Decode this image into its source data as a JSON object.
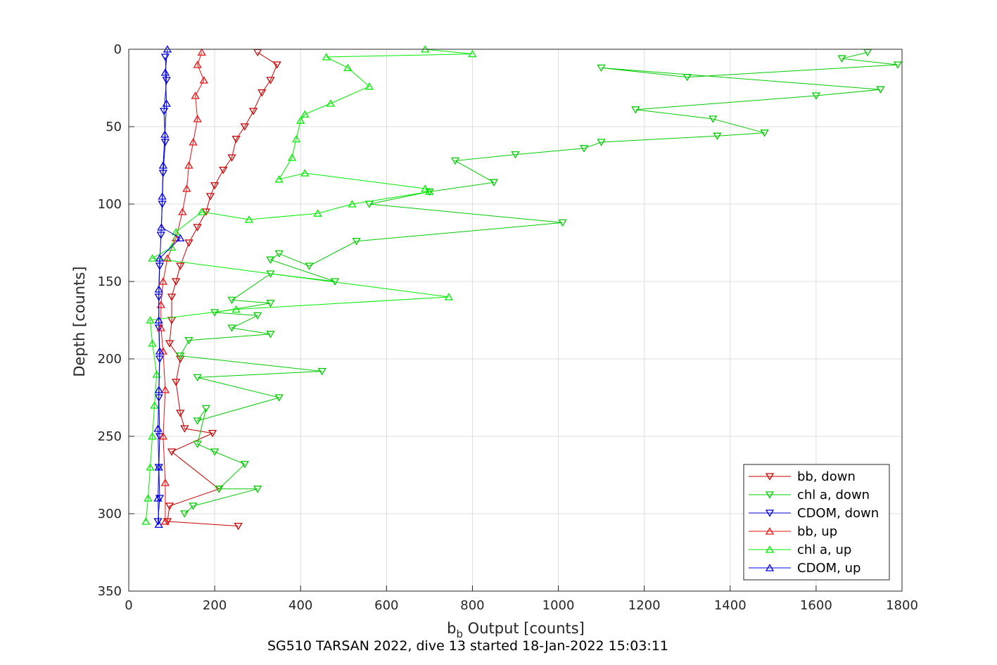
{
  "chart_data": {
    "type": "scatter",
    "xlabel_main": "b",
    "xlabel_sub": "b",
    "xlabel_rest": " Output [counts]",
    "ylabel": "Depth [counts]",
    "caption": "SG510 TARSAN 2022, dive 13 started 18-Jan-2022 15:03:11",
    "xlim": [
      0,
      1800
    ],
    "ylim": [
      0,
      350
    ],
    "y_reversed": true,
    "grid": true,
    "legend_position": "bottom-right",
    "x_ticks": [
      "0",
      "200",
      "400",
      "600",
      "800",
      "1000",
      "1200",
      "1400",
      "1600",
      "1800"
    ],
    "y_ticks": [
      "0",
      "50",
      "100",
      "150",
      "200",
      "250",
      "300",
      "350"
    ],
    "series": [
      {
        "name": "bb, down",
        "color": "#cc0000",
        "marker": "triangle-down",
        "points": [
          [
            300,
            2
          ],
          [
            345,
            10
          ],
          [
            330,
            20
          ],
          [
            310,
            28
          ],
          [
            290,
            40
          ],
          [
            270,
            50
          ],
          [
            250,
            58
          ],
          [
            240,
            70
          ],
          [
            220,
            78
          ],
          [
            200,
            88
          ],
          [
            190,
            95
          ],
          [
            180,
            105
          ],
          [
            160,
            115
          ],
          [
            140,
            125
          ],
          [
            120,
            140
          ],
          [
            110,
            150
          ],
          [
            100,
            160
          ],
          [
            100,
            175
          ],
          [
            95,
            190
          ],
          [
            120,
            200
          ],
          [
            110,
            215
          ],
          [
            120,
            235
          ],
          [
            130,
            245
          ],
          [
            195,
            248
          ],
          [
            100,
            260
          ],
          [
            210,
            284
          ],
          [
            95,
            295
          ],
          [
            90,
            305
          ],
          [
            255,
            308
          ]
        ]
      },
      {
        "name": "chl a, down",
        "color": "#00cc00",
        "marker": "triangle-down",
        "points": [
          [
            1720,
            2
          ],
          [
            1660,
            6
          ],
          [
            1790,
            10
          ],
          [
            1300,
            18
          ],
          [
            1100,
            12
          ],
          [
            1750,
            26
          ],
          [
            1600,
            30
          ],
          [
            1180,
            39
          ],
          [
            1360,
            45
          ],
          [
            1480,
            54
          ],
          [
            1370,
            56
          ],
          [
            1100,
            60
          ],
          [
            1060,
            64
          ],
          [
            900,
            68
          ],
          [
            760,
            72
          ],
          [
            850,
            86
          ],
          [
            700,
            92
          ],
          [
            560,
            100
          ],
          [
            1010,
            112
          ],
          [
            530,
            124
          ],
          [
            420,
            140
          ],
          [
            350,
            132
          ],
          [
            330,
            136
          ],
          [
            480,
            150
          ],
          [
            330,
            145
          ],
          [
            240,
            162
          ],
          [
            330,
            164
          ],
          [
            200,
            170
          ],
          [
            300,
            172
          ],
          [
            240,
            180
          ],
          [
            330,
            184
          ],
          [
            140,
            188
          ],
          [
            120,
            198
          ],
          [
            450,
            208
          ],
          [
            160,
            212
          ],
          [
            350,
            225
          ],
          [
            160,
            240
          ],
          [
            180,
            232
          ],
          [
            160,
            255
          ],
          [
            200,
            260
          ],
          [
            270,
            268
          ],
          [
            210,
            284
          ],
          [
            300,
            284
          ],
          [
            150,
            295
          ],
          [
            130,
            300
          ]
        ]
      },
      {
        "name": "CDOM, down",
        "color": "#0000cc",
        "marker": "triangle-down",
        "points": [
          [
            85,
            5
          ],
          [
            88,
            20
          ],
          [
            82,
            40
          ],
          [
            85,
            60
          ],
          [
            80,
            80
          ],
          [
            78,
            100
          ],
          [
            75,
            120
          ],
          [
            72,
            140
          ],
          [
            70,
            160
          ],
          [
            70,
            180
          ],
          [
            72,
            200
          ],
          [
            70,
            225
          ],
          [
            72,
            250
          ],
          [
            70,
            270
          ],
          [
            72,
            290
          ],
          [
            68,
            305
          ]
        ]
      },
      {
        "name": "bb, up",
        "color": "#ee1111",
        "marker": "triangle-up",
        "points": [
          [
            170,
            2
          ],
          [
            160,
            10
          ],
          [
            175,
            20
          ],
          [
            155,
            30
          ],
          [
            160,
            45
          ],
          [
            150,
            60
          ],
          [
            140,
            75
          ],
          [
            135,
            90
          ],
          [
            125,
            105
          ],
          [
            110,
            122
          ],
          [
            90,
            135
          ],
          [
            80,
            150
          ],
          [
            75,
            165
          ],
          [
            75,
            180
          ],
          [
            80,
            195
          ],
          [
            85,
            220
          ],
          [
            80,
            250
          ],
          [
            85,
            280
          ],
          [
            85,
            305
          ]
        ]
      },
      {
        "name": "chl a, up",
        "color": "#00ee00",
        "marker": "triangle-up",
        "points": [
          [
            690,
            0
          ],
          [
            800,
            3
          ],
          [
            460,
            5
          ],
          [
            510,
            12
          ],
          [
            560,
            24
          ],
          [
            470,
            35
          ],
          [
            410,
            42
          ],
          [
            400,
            46
          ],
          [
            390,
            58
          ],
          [
            380,
            70
          ],
          [
            350,
            84
          ],
          [
            410,
            80
          ],
          [
            690,
            90
          ],
          [
            700,
            92
          ],
          [
            520,
            100
          ],
          [
            440,
            106
          ],
          [
            280,
            110
          ],
          [
            170,
            105
          ],
          [
            110,
            118
          ],
          [
            100,
            128
          ],
          [
            55,
            135
          ],
          [
            745,
            160
          ],
          [
            250,
            168
          ],
          [
            50,
            175
          ],
          [
            55,
            190
          ],
          [
            65,
            210
          ],
          [
            60,
            230
          ],
          [
            55,
            250
          ],
          [
            50,
            270
          ],
          [
            45,
            290
          ],
          [
            40,
            305
          ]
        ]
      },
      {
        "name": "CDOM, up",
        "color": "#0000ee",
        "marker": "triangle-up",
        "points": [
          [
            90,
            0
          ],
          [
            85,
            15
          ],
          [
            88,
            35
          ],
          [
            84,
            55
          ],
          [
            80,
            75
          ],
          [
            78,
            95
          ],
          [
            76,
            115
          ],
          [
            120,
            122
          ],
          [
            72,
            135
          ],
          [
            70,
            155
          ],
          [
            70,
            175
          ],
          [
            72,
            195
          ],
          [
            70,
            220
          ],
          [
            68,
            245
          ],
          [
            70,
            270
          ],
          [
            68,
            290
          ],
          [
            70,
            307
          ]
        ]
      }
    ]
  }
}
